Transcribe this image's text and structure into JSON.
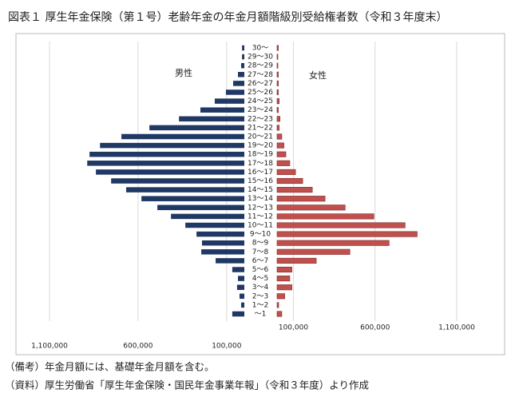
{
  "chart_data": {
    "type": "pyramid",
    "title": "図表１ 厚生年金保険（第１号）老齢年金の年金月額階級別受給権者数（令和３年度末）",
    "categories": [
      "30～",
      "29～30",
      "28～29",
      "27～28",
      "26～27",
      "25～26",
      "24～25",
      "23～24",
      "22～23",
      "21～22",
      "20～21",
      "19～20",
      "18～19",
      "17～18",
      "16～17",
      "15～16",
      "14～15",
      "13～14",
      "12～13",
      "11～12",
      "10～11",
      "9～10",
      "8～9",
      "7～8",
      "6～7",
      "5～6",
      "4～5",
      "3～4",
      "2～3",
      "1～2",
      "～1"
    ],
    "series": [
      {
        "name": "男性",
        "color": "#1f3864",
        "side": "left",
        "values": [
          13000,
          13000,
          18000,
          36000,
          63000,
          104000,
          167000,
          248000,
          369000,
          536000,
          694000,
          815000,
          874000,
          887000,
          838000,
          752000,
          667000,
          581000,
          491000,
          414000,
          333000,
          270000,
          239000,
          243000,
          162000,
          68000,
          36000,
          41000,
          27000,
          18000,
          68000
        ]
      },
      {
        "name": "女性",
        "color": "#c0504d",
        "side": "right",
        "values": [
          8000,
          5000,
          5000,
          8000,
          8000,
          8000,
          13000,
          8000,
          18000,
          13000,
          29000,
          42000,
          54000,
          78000,
          113000,
          157000,
          216000,
          294000,
          417000,
          593000,
          784000,
          858000,
          686000,
          446000,
          240000,
          91000,
          78000,
          91000,
          47000,
          10000,
          29000
        ]
      }
    ],
    "xlim": [
      0,
      1100000
    ],
    "xticks": [
      {
        "value": 100000,
        "label": "100,000"
      },
      {
        "value": 600000,
        "label": "600,000"
      },
      {
        "value": 1100000,
        "label": "1,100,000"
      }
    ],
    "grid": true,
    "notes": [
      "（備考）年金月額には、基礎年金月額を含む。",
      "（資料）厚生労働省「厚生年金保険・国民年金事業年報」（令和３年度）より作成"
    ]
  }
}
